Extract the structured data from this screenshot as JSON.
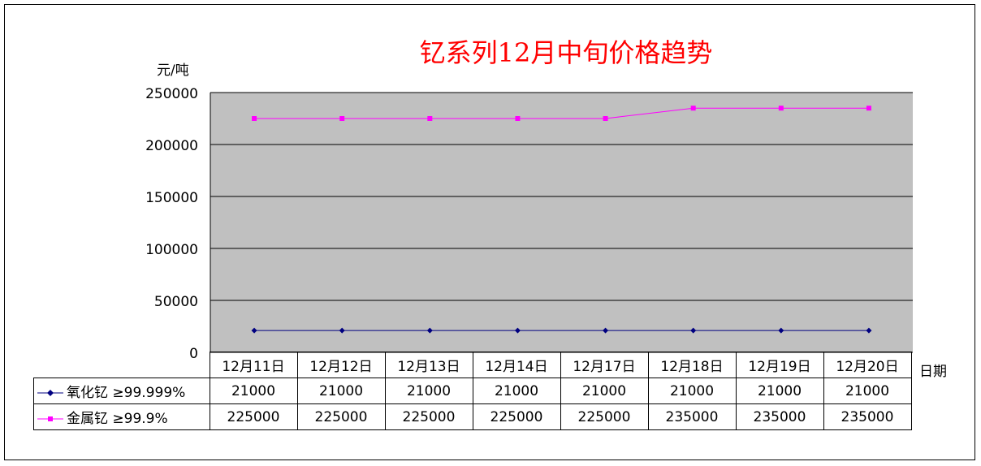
{
  "chart_data": {
    "type": "line",
    "title": "钇系列12月中旬价格趋势",
    "ylabel": "元/吨",
    "xlabel": "日期",
    "categories": [
      "12月11日",
      "12月12日",
      "12月13日",
      "12月14日",
      "12月17日",
      "12月18日",
      "12月19日",
      "12月20日"
    ],
    "ylim": [
      0,
      250000
    ],
    "yticks": [
      "250000",
      "200000",
      "150000",
      "100000",
      "50000",
      "0"
    ],
    "grid": true,
    "legend": "data-table",
    "plot_background": "#c0c0c0",
    "series": [
      {
        "name": "氧化钇 ≥99.999%",
        "color": "#000080",
        "marker": "diamond",
        "values": [
          21000,
          21000,
          21000,
          21000,
          21000,
          21000,
          21000,
          21000
        ],
        "labels": [
          "21000",
          "21000",
          "21000",
          "21000",
          "21000",
          "21000",
          "21000",
          "21000"
        ]
      },
      {
        "name": "金属钇 ≥99.9%",
        "color": "#ff00ff",
        "marker": "square",
        "values": [
          225000,
          225000,
          225000,
          225000,
          225000,
          235000,
          235000,
          235000
        ],
        "labels": [
          "225000",
          "225000",
          "225000",
          "225000",
          "225000",
          "235000",
          "235000",
          "235000"
        ]
      }
    ]
  }
}
